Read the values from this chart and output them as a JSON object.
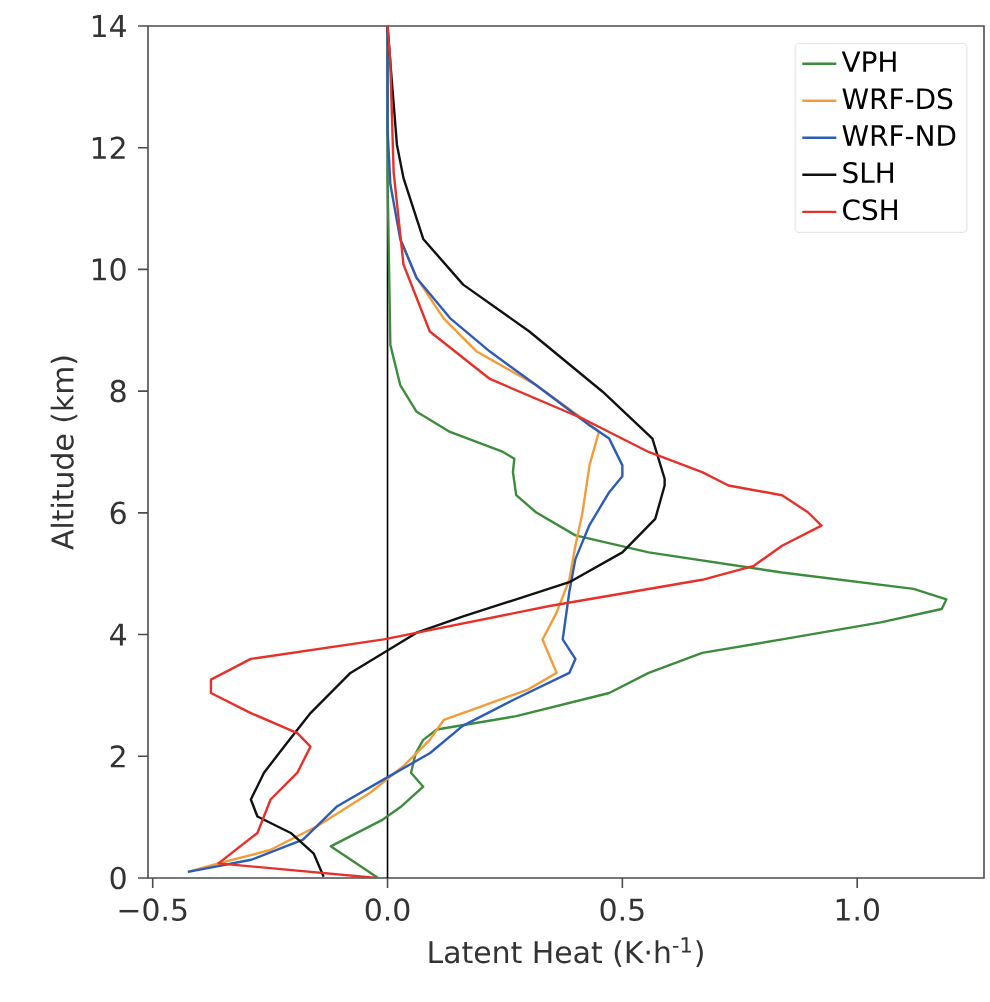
{
  "chart_data": {
    "type": "line",
    "xlabel": "Latent Heat (K·h$^{-1}$)",
    "ylabel": "Altitude (km)",
    "xlim": [
      -0.51,
      1.27
    ],
    "ylim": [
      0,
      14
    ],
    "xticks": [
      {
        "value": -0.5,
        "label": "−0.5"
      },
      {
        "value": 0,
        "label": "0.0"
      },
      {
        "value": 0.5,
        "label": "0.5"
      },
      {
        "value": 1,
        "label": "1.0"
      }
    ],
    "yticks": [
      0,
      2,
      4,
      6,
      8,
      10,
      12,
      14
    ],
    "legend": "top right",
    "marker": "none",
    "line_style": "solid",
    "ref_lines": [
      {
        "axis": "x",
        "value": 0,
        "color": "#000000"
      }
    ],
    "series": [
      {
        "name": "VPH",
        "color": "#3d8b3d",
        "x": [
          -0.02,
          -0.121,
          -0.01,
          0.03,
          0.076,
          0.05,
          0.06,
          0.076,
          0.105,
          0.274,
          0.472,
          0.556,
          0.67,
          0.84,
          1.05,
          1.18,
          1.19,
          1.12,
          0.84,
          0.556,
          0.4,
          0.316,
          0.274,
          0.267,
          0.27,
          0.246,
          0.133,
          0.062,
          0.027,
          0.006,
          0.0,
          0.0
        ],
        "values": [
          0,
          0.52,
          0.96,
          1.18,
          1.5,
          1.73,
          2.05,
          2.27,
          2.44,
          2.66,
          3.04,
          3.37,
          3.7,
          3.92,
          4.2,
          4.42,
          4.58,
          4.75,
          5.02,
          5.35,
          5.63,
          6.01,
          6.29,
          6.67,
          6.89,
          7.0,
          7.33,
          7.66,
          8.1,
          8.76,
          11.5,
          14
        ]
      },
      {
        "name": "WRF-DS",
        "color": "#f39c3a",
        "x": [
          -0.425,
          -0.36,
          -0.25,
          -0.15,
          -0.037,
          0.034,
          0.09,
          0.12,
          0.2,
          0.3,
          0.36,
          0.33,
          0.36,
          0.387,
          0.4,
          0.415,
          0.43,
          0.45,
          0.415,
          0.316,
          0.19,
          0.119,
          0.062,
          0.027
        ],
        "values": [
          0.1,
          0.24,
          0.46,
          0.85,
          1.4,
          1.84,
          2.27,
          2.6,
          2.82,
          3.1,
          3.37,
          3.92,
          4.36,
          4.9,
          5.46,
          6.0,
          6.78,
          7.33,
          7.55,
          8.1,
          8.65,
          9.2,
          9.86,
          10.5
        ]
      },
      {
        "name": "WRF-ND",
        "color": "#2a5cb8",
        "x": [
          -0.425,
          -0.29,
          -0.18,
          -0.107,
          -0.008,
          0.09,
          0.16,
          0.274,
          0.387,
          0.4,
          0.373,
          0.387,
          0.4,
          0.43,
          0.472,
          0.5,
          0.5,
          0.472,
          0.43,
          0.316,
          0.218,
          0.133,
          0.062,
          0.027,
          0.006,
          0.0,
          0.0
        ],
        "values": [
          0.1,
          0.3,
          0.63,
          1.18,
          1.62,
          2.05,
          2.5,
          2.95,
          3.37,
          3.6,
          3.92,
          4.7,
          5.24,
          5.8,
          6.34,
          6.6,
          6.78,
          7.22,
          7.44,
          8.1,
          8.65,
          9.2,
          9.86,
          10.5,
          11.4,
          12.3,
          14
        ]
      },
      {
        "name": "SLH",
        "color": "#111111",
        "x": [
          -0.136,
          -0.157,
          -0.206,
          -0.277,
          -0.291,
          -0.263,
          -0.22,
          -0.164,
          -0.079,
          -0.008,
          0.062,
          0.161,
          0.274,
          0.387,
          0.5,
          0.57,
          0.59,
          0.59,
          0.564,
          0.458,
          0.302,
          0.161,
          0.076,
          0.034,
          0.02,
          0.006,
          0.0
        ],
        "values": [
          0.02,
          0.4,
          0.74,
          1.01,
          1.29,
          1.73,
          2.16,
          2.71,
          3.37,
          3.7,
          4.03,
          4.3,
          4.58,
          4.86,
          5.35,
          5.9,
          6.45,
          6.56,
          7.22,
          7.99,
          8.98,
          9.75,
          10.5,
          11.5,
          12.05,
          13.4,
          14
        ]
      },
      {
        "name": "CSH",
        "color": "#e8302a",
        "x": [
          -0.023,
          -0.36,
          -0.277,
          -0.249,
          -0.192,
          -0.164,
          -0.192,
          -0.291,
          -0.376,
          -0.376,
          -0.291,
          -0.008,
          0.345,
          0.67,
          0.78,
          0.84,
          0.924,
          0.895,
          0.84,
          0.726,
          0.67,
          0.556,
          0.415,
          0.218,
          0.09,
          0.034,
          0.013,
          0.006,
          0.0
        ],
        "values": [
          0,
          0.24,
          0.74,
          1.29,
          1.73,
          2.16,
          2.38,
          2.71,
          3.04,
          3.26,
          3.6,
          3.92,
          4.47,
          4.9,
          5.13,
          5.46,
          5.79,
          6.01,
          6.29,
          6.45,
          6.67,
          7.0,
          7.55,
          8.2,
          8.98,
          10.08,
          11.6,
          13.4,
          14
        ]
      }
    ]
  }
}
